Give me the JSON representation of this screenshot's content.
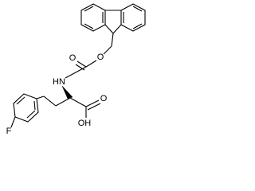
{
  "atoms": {
    "ester_oxygen": "O",
    "carbonyl_oxygen": "O",
    "amine": "HN",
    "acid_carbonyl_oxygen": "O",
    "hydroxyl": "OH",
    "fluorine": "F"
  }
}
